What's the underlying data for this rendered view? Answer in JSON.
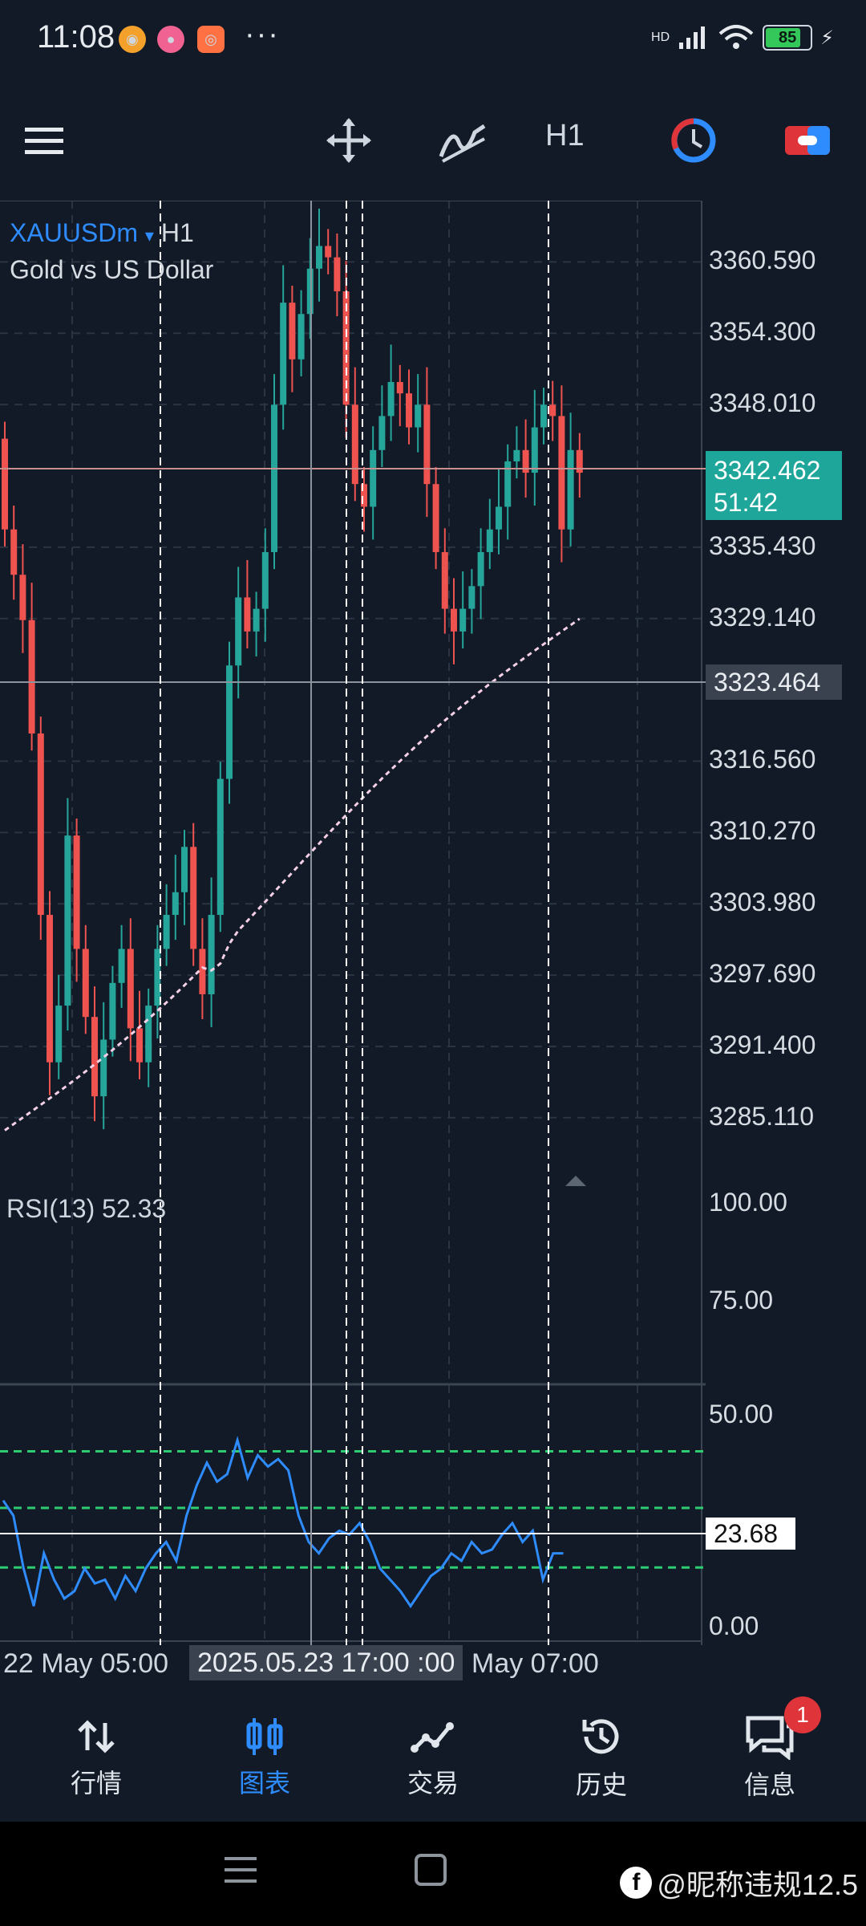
{
  "status_bar": {
    "time": "11:08",
    "more": "···",
    "network": "HD",
    "battery": "85",
    "battery_level": 0.85
  },
  "toolbar": {
    "timeframe": "H1",
    "icons": [
      "menu-icon",
      "crosshair-move-icon",
      "indicator-icon",
      "timeframe",
      "clock-icon",
      "trade-toggle-icon"
    ]
  },
  "chart": {
    "symbol": "XAUUSDm",
    "symbol_sep": "▾",
    "timeframe": "H1",
    "description": "Gold vs US Dollar",
    "bull_color": "#26a69a",
    "bear_color": "#ef5350",
    "current_price": "3342.462",
    "countdown": "51:42",
    "crosshair_price": "3323.464",
    "price_labels": [
      "3360.590",
      "3354.300",
      "3348.010",
      "3335.430",
      "3329.140",
      "3316.560",
      "3310.270",
      "3303.980",
      "3297.690",
      "3291.400",
      "3285.110"
    ],
    "price_min": 3280,
    "price_max": 3366
  },
  "rsi": {
    "title": "RSI(13) 52.33",
    "levels": [
      "100.00",
      "75.00",
      "50.00",
      "0.00"
    ],
    "crosshair_value": "23.68",
    "line_color": "#2f8cff",
    "level_color": "#2ecc71"
  },
  "time_axis": {
    "left_label": "22 May 05:00",
    "crosshair_label": "2025.05.23 17:00 :00",
    "right_label": "May 07:00"
  },
  "bottom_nav": {
    "items": [
      {
        "label": "行情",
        "icon": "quotes-icon"
      },
      {
        "label": "图表",
        "icon": "chart-icon"
      },
      {
        "label": "交易",
        "icon": "trade-icon"
      },
      {
        "label": "历史",
        "icon": "history-icon"
      },
      {
        "label": "信息",
        "icon": "messages-icon"
      }
    ],
    "active_index": 1,
    "badge": "1"
  },
  "watermark": {
    "text": "@昵称违规12.5"
  }
}
